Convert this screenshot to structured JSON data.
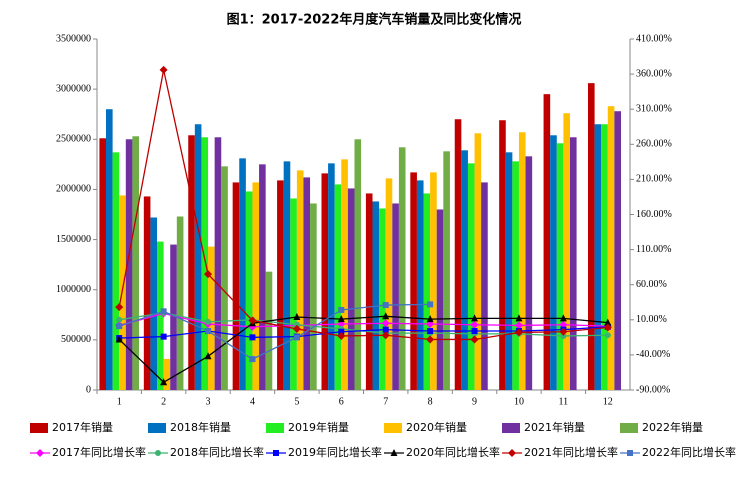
{
  "chart_data": {
    "type": "bar",
    "title": "图1：2017-2022年月度汽车销量及同比变化情况",
    "categories": [
      "1",
      "2",
      "3",
      "4",
      "5",
      "6",
      "7",
      "8",
      "9",
      "10",
      "11",
      "12"
    ],
    "ylim": [
      0,
      3500000
    ],
    "yticks": [
      0,
      500000,
      1000000,
      1500000,
      2000000,
      2500000,
      3000000,
      3500000
    ],
    "y2lim": [
      -90,
      410
    ],
    "y2ticks": [
      {
        "value": -90,
        "label": "-90.00%"
      },
      {
        "value": -40,
        "label": "-40.00%"
      },
      {
        "value": 10,
        "label": "10.00%"
      },
      {
        "value": 60,
        "label": "60.00%"
      },
      {
        "value": 110,
        "label": "110.00%"
      },
      {
        "value": 160,
        "label": "160.00%"
      },
      {
        "value": 210,
        "label": "210.00%"
      },
      {
        "value": 260,
        "label": "260.00%"
      },
      {
        "value": 310,
        "label": "310.00%"
      },
      {
        "value": 360,
        "label": "360.00%"
      },
      {
        "value": 410,
        "label": "410.00%"
      }
    ],
    "series": [
      {
        "name": "2017年销量",
        "type": "bar",
        "color": "#c00000",
        "values": [
          2510000,
          1930000,
          2540000,
          2070000,
          2090000,
          2160000,
          1960000,
          2170000,
          2700000,
          2690000,
          2950000,
          3060000
        ]
      },
      {
        "name": "2018年销量",
        "type": "bar",
        "color": "#0070c0",
        "values": [
          2800000,
          1720000,
          2650000,
          2310000,
          2280000,
          2260000,
          1880000,
          2090000,
          2390000,
          2370000,
          2540000,
          2650000
        ]
      },
      {
        "name": "2019年销量",
        "type": "bar",
        "color": "#22ee22",
        "values": [
          2370000,
          1480000,
          2520000,
          1980000,
          1910000,
          2050000,
          1810000,
          1960000,
          2260000,
          2280000,
          2460000,
          2650000
        ]
      },
      {
        "name": "2020年销量",
        "type": "bar",
        "color": "#ffc000",
        "values": [
          1940000,
          310000,
          1430000,
          2070000,
          2190000,
          2300000,
          2110000,
          2170000,
          2560000,
          2570000,
          2760000,
          2830000
        ]
      },
      {
        "name": "2021年销量",
        "type": "bar",
        "color": "#7030a0",
        "values": [
          2500000,
          1450000,
          2520000,
          2250000,
          2120000,
          2010000,
          1860000,
          1800000,
          2070000,
          2330000,
          2520000,
          2780000
        ]
      },
      {
        "name": "2022年销量",
        "type": "bar",
        "color": "#70ad47",
        "values": [
          2530000,
          1730000,
          2230000,
          1180000,
          1860000,
          2500000,
          2420000,
          2380000,
          null,
          null,
          null,
          null
        ]
      },
      {
        "name": "2017年同比增长率",
        "type": "line",
        "axis": "y2",
        "marker": "diamond",
        "color": "#ff00ff",
        "values": [
          2,
          19,
          4,
          0,
          2,
          4,
          5,
          4,
          3,
          2,
          3,
          1
        ]
      },
      {
        "name": "2018年同比增长率",
        "type": "line",
        "axis": "y2",
        "marker": "circle",
        "color": "#3cb371",
        "values": [
          10,
          20,
          7,
          10,
          3,
          -3,
          -9,
          -9,
          -10,
          -10,
          -13,
          -12
        ]
      },
      {
        "name": "2019年同比增长率",
        "type": "line",
        "axis": "y2",
        "marker": "square",
        "color": "#0000ff",
        "values": [
          -16,
          -14,
          -6,
          -15,
          -14,
          -7,
          -4,
          -6,
          -6,
          -6,
          -4,
          0
        ]
      },
      {
        "name": "2020年同比增长率",
        "type": "line",
        "axis": "y2",
        "marker": "triangle",
        "color": "#000000",
        "values": [
          -18,
          -79,
          -42,
          5,
          14,
          11,
          15,
          11,
          12,
          12,
          12,
          6
        ]
      },
      {
        "name": "2021年同比增长率",
        "type": "line",
        "axis": "y2",
        "marker": "diamond",
        "color": "#c00000",
        "values": [
          28,
          366,
          75,
          9,
          -3,
          -13,
          -12,
          -18,
          -18,
          -8,
          -7,
          -1
        ]
      },
      {
        "name": "2022年同比增长率",
        "type": "line",
        "axis": "y2",
        "marker": "square",
        "color": "#4472c4",
        "values": [
          1,
          22,
          -6,
          -46,
          -15,
          24,
          31,
          32,
          null,
          null,
          null,
          null
        ]
      }
    ]
  }
}
